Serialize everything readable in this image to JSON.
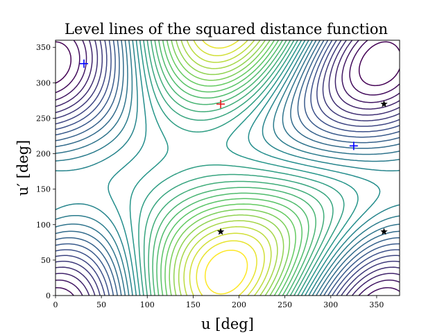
{
  "chart_data": {
    "type": "contour",
    "title": "Level lines of the squared distance function",
    "xlabel": "u [deg]",
    "ylabel": "u′ [deg]",
    "xlim": [
      0,
      375
    ],
    "ylim": [
      0,
      360
    ],
    "xticks": [
      0,
      50,
      100,
      150,
      200,
      250,
      300,
      350
    ],
    "yticks": [
      0,
      50,
      100,
      150,
      200,
      250,
      300,
      350
    ],
    "grid": false,
    "colormap": [
      "#440154",
      "#3b528b",
      "#21918c",
      "#5ec962",
      "#fde725"
    ],
    "contour_levels": 30,
    "maximum_point": {
      "u": 180,
      "u_prime": 270,
      "marker": "plus",
      "color": "#e41a1c"
    },
    "plus_markers": [
      {
        "u": 31,
        "u_prime": 327,
        "color": "#0000ff"
      },
      {
        "u": 325,
        "u_prime": 211,
        "color": "#0000ff"
      }
    ],
    "star_markers": [
      {
        "u": 180,
        "u_prime": 90,
        "color": "#000000"
      },
      {
        "u": 358,
        "u_prime": 270,
        "color": "#000000"
      },
      {
        "u": 358,
        "u_prime": 90,
        "color": "#000000"
      }
    ]
  }
}
